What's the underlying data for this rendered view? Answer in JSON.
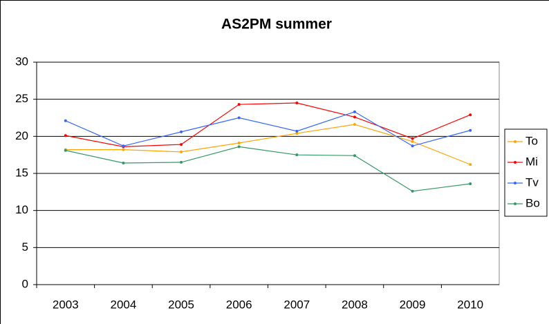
{
  "chart_data": {
    "type": "line",
    "title": "AS2PM summer",
    "categories": [
      "2003",
      "2004",
      "2005",
      "2006",
      "2007",
      "2008",
      "2009",
      "2010"
    ],
    "series": [
      {
        "name": "To",
        "color": "#ffa500",
        "values": [
          18.2,
          18.2,
          17.9,
          19.1,
          20.4,
          21.6,
          19.3,
          16.2
        ]
      },
      {
        "name": "Mi",
        "color": "#ff0000",
        "values": [
          20.1,
          18.6,
          18.9,
          24.3,
          24.5,
          22.6,
          19.7,
          22.9
        ]
      },
      {
        "name": "Tv",
        "color": "#3366ff",
        "values": [
          22.1,
          18.7,
          20.6,
          22.5,
          20.7,
          23.3,
          18.7,
          20.8
        ]
      },
      {
        "name": "Bo",
        "color": "#339966",
        "values": [
          18.1,
          16.4,
          16.5,
          18.6,
          17.5,
          17.4,
          12.6,
          13.6
        ]
      }
    ],
    "ylim": [
      0,
      30
    ],
    "yticks": [
      0,
      5,
      10,
      15,
      20,
      25,
      30
    ],
    "grid": true,
    "legend": "right"
  }
}
